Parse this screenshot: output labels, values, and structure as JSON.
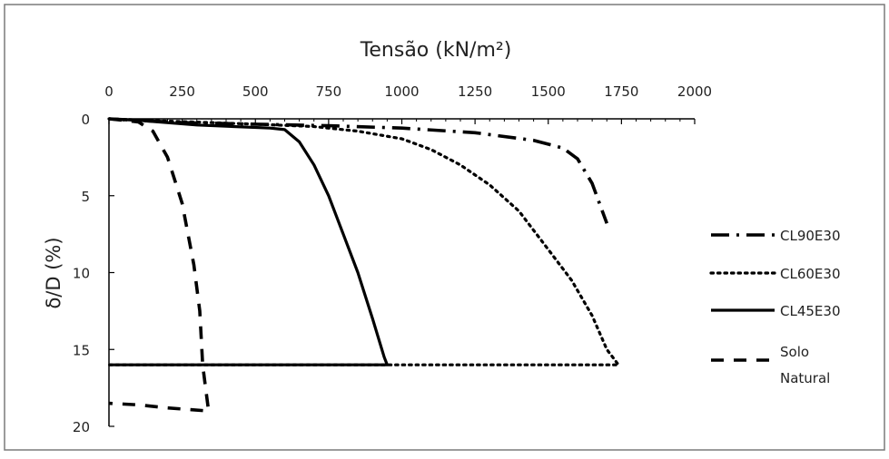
{
  "chart_data": {
    "type": "line",
    "title": "",
    "xlabel": "Tensão (kN/m²)",
    "ylabel": "δ/D (%)",
    "x_axis_position": "top",
    "y_axis_inverted": true,
    "xlim": [
      0,
      2000
    ],
    "ylim": [
      0,
      20
    ],
    "x_ticks": [
      "0",
      "250",
      "500",
      "750",
      "1000",
      "1250",
      "1500",
      "1750",
      "2000"
    ],
    "y_ticks": [
      "0",
      "5",
      "10",
      "15",
      "20"
    ],
    "grid": false,
    "legend_position": "right",
    "series": [
      {
        "name": "CL90E30",
        "line_style": "dash-dot",
        "color": "#000000",
        "points": [
          [
            0,
            0
          ],
          [
            100,
            0.1
          ],
          [
            250,
            0.25
          ],
          [
            500,
            0.35
          ],
          [
            750,
            0.45
          ],
          [
            1000,
            0.6
          ],
          [
            1250,
            0.9
          ],
          [
            1450,
            1.4
          ],
          [
            1550,
            1.9
          ],
          [
            1600,
            2.6
          ],
          [
            1650,
            4.2
          ],
          [
            1700,
            6.8
          ]
        ]
      },
      {
        "name": "CL60E30",
        "line_style": "dotted",
        "color": "#000000",
        "points": [
          [
            0,
            0
          ],
          [
            200,
            0.15
          ],
          [
            500,
            0.35
          ],
          [
            700,
            0.5
          ],
          [
            850,
            0.8
          ],
          [
            1000,
            1.3
          ],
          [
            1100,
            2.0
          ],
          [
            1200,
            3.0
          ],
          [
            1300,
            4.3
          ],
          [
            1400,
            6.0
          ],
          [
            1500,
            8.5
          ],
          [
            1580,
            10.5
          ],
          [
            1650,
            12.8
          ],
          [
            1700,
            15.0
          ],
          [
            1740,
            16.0
          ],
          [
            850,
            16.0
          ],
          [
            0,
            16.0
          ]
        ]
      },
      {
        "name": "CL45E30",
        "line_style": "solid",
        "color": "#000000",
        "points": [
          [
            0,
            0
          ],
          [
            100,
            0.1
          ],
          [
            300,
            0.4
          ],
          [
            550,
            0.6
          ],
          [
            600,
            0.7
          ],
          [
            650,
            1.5
          ],
          [
            700,
            3.0
          ],
          [
            750,
            5.0
          ],
          [
            800,
            7.5
          ],
          [
            850,
            10.0
          ],
          [
            900,
            13.0
          ],
          [
            940,
            15.5
          ],
          [
            950,
            16.0
          ],
          [
            0,
            16.0
          ]
        ]
      },
      {
        "name": "Solo Natural",
        "legend_lines": [
          "Solo",
          "Natural"
        ],
        "line_style": "dashed",
        "color": "#000000",
        "points": [
          [
            0,
            0
          ],
          [
            100,
            0.2
          ],
          [
            150,
            0.8
          ],
          [
            200,
            2.5
          ],
          [
            250,
            5.5
          ],
          [
            290,
            9.5
          ],
          [
            310,
            12.5
          ],
          [
            320,
            16.0
          ],
          [
            330,
            17.5
          ],
          [
            340,
            19.0
          ],
          [
            200,
            18.8
          ],
          [
            100,
            18.6
          ],
          [
            0,
            18.5
          ]
        ]
      }
    ]
  }
}
